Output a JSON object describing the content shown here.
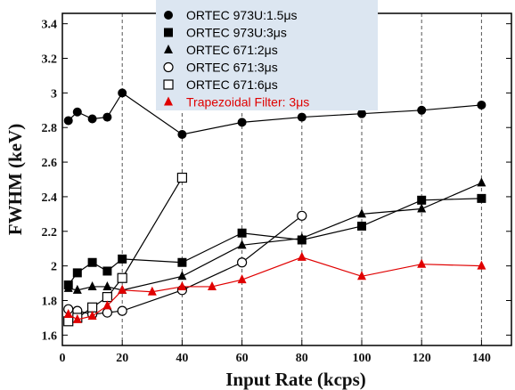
{
  "chart_data": {
    "type": "line",
    "title": "",
    "xlabel": "Input Rate (kcps)",
    "ylabel": "FWHM (keV)",
    "xlim": [
      0,
      150
    ],
    "ylim": [
      1.54,
      3.46
    ],
    "xticks": [
      0,
      20,
      40,
      60,
      80,
      100,
      120,
      140
    ],
    "yticks": [
      1.6,
      1.8,
      2,
      2.2,
      2.4,
      2.6,
      2.8,
      3,
      3.2,
      3.4
    ],
    "grid": "vertical dashed",
    "legend": "top-center",
    "colors": {
      "black": "#000000",
      "red": "#e00000",
      "legend_bg": "#dce6f1",
      "grid": "#555555"
    },
    "series": [
      {
        "name": "ORTEC 973U:1.5μs",
        "marker": "circle-filled",
        "color": "#000000",
        "x": [
          2,
          5,
          10,
          15,
          20,
          40,
          60,
          80,
          100,
          120,
          140
        ],
        "y": [
          2.84,
          2.89,
          2.85,
          2.86,
          3.0,
          2.76,
          2.83,
          2.86,
          2.88,
          2.9,
          2.93
        ]
      },
      {
        "name": "ORTEC 973U:3μs",
        "marker": "square-filled",
        "color": "#000000",
        "x": [
          2,
          5,
          10,
          15,
          20,
          40,
          60,
          80,
          100,
          120,
          140
        ],
        "y": [
          1.89,
          1.96,
          2.02,
          1.97,
          2.04,
          2.02,
          2.19,
          2.15,
          2.23,
          2.38,
          2.39
        ]
      },
      {
        "name": "ORTEC 671:2μs",
        "marker": "triangle-filled",
        "color": "#000000",
        "x": [
          2,
          5,
          10,
          15,
          20,
          40,
          60,
          80,
          100,
          120,
          140
        ],
        "y": [
          1.87,
          1.86,
          1.88,
          1.88,
          1.86,
          1.94,
          2.12,
          2.16,
          2.3,
          2.33,
          2.48
        ]
      },
      {
        "name": "ORTEC 671:3μs",
        "marker": "circle-open",
        "color": "#000000",
        "x": [
          2,
          5,
          10,
          15,
          20,
          40,
          60,
          80
        ],
        "y": [
          1.75,
          1.74,
          1.72,
          1.73,
          1.74,
          1.86,
          2.02,
          2.29
        ]
      },
      {
        "name": "ORTEC 671:6μs",
        "marker": "square-open",
        "color": "#000000",
        "x": [
          2,
          5,
          10,
          15,
          20,
          40
        ],
        "y": [
          1.68,
          1.7,
          1.76,
          1.82,
          1.93,
          2.51
        ]
      },
      {
        "name": "Trapezoidal Filter: 3μs",
        "marker": "triangle-filled",
        "color": "#e00000",
        "x": [
          2,
          5,
          10,
          15,
          20,
          30,
          40,
          50,
          60,
          80,
          100,
          120,
          140
        ],
        "y": [
          1.72,
          1.69,
          1.71,
          1.77,
          1.86,
          1.85,
          1.88,
          1.88,
          1.92,
          2.05,
          1.94,
          2.01,
          2.0
        ]
      }
    ]
  }
}
